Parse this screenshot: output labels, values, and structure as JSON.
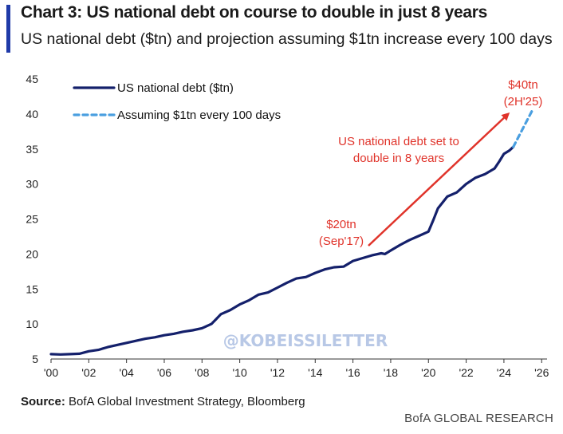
{
  "header": {
    "title": "Chart 3: US national debt on course to double in just 8 years",
    "subtitle": "US national debt ($tn) and projection assuming $1tn increase every 100 days"
  },
  "footer": {
    "source_label": "Source:",
    "source_text": " BofA Global Investment Strategy, Bloomberg",
    "brand": "BofA GLOBAL RESEARCH"
  },
  "watermark": "@KOBEISSILETTER",
  "colors": {
    "debt_line": "#14206b",
    "projection_line": "#4a9fe0",
    "annotation": "#e0332a",
    "watermark": "#b8c8e6"
  },
  "chart_data": {
    "type": "line",
    "title": "",
    "xlabel": "",
    "ylabel": "",
    "xlim": [
      2000,
      2027.3
    ],
    "ylim": [
      5,
      45
    ],
    "grid": false,
    "legend_position": "top-left",
    "x_ticks": [
      2000,
      2002,
      2004,
      2006,
      2008,
      2010,
      2012,
      2014,
      2016,
      2018,
      2020,
      2022,
      2024,
      2026
    ],
    "x_tick_labels": [
      "'00",
      "'02",
      "'04",
      "'06",
      "'08",
      "'10",
      "'12",
      "'14",
      "'16",
      "'18",
      "'20",
      "'22",
      "'24",
      "'26"
    ],
    "y_ticks": [
      5,
      10,
      15,
      20,
      25,
      30,
      35,
      40,
      45
    ],
    "y_tick_labels": [
      "5",
      "10",
      "15",
      "20",
      "25",
      "30",
      "35",
      "40",
      "45"
    ],
    "series": [
      {
        "name": "US national debt ($tn)",
        "style": "solid",
        "x": [
          2000.0,
          2000.5,
          2001.0,
          2001.5,
          2002.0,
          2002.5,
          2003.0,
          2003.5,
          2004.0,
          2004.5,
          2005.0,
          2005.5,
          2006.0,
          2006.5,
          2007.0,
          2007.5,
          2008.0,
          2008.5,
          2008.75,
          2009.0,
          2009.5,
          2010.0,
          2010.5,
          2011.0,
          2011.5,
          2012.0,
          2012.5,
          2013.0,
          2013.5,
          2014.0,
          2014.5,
          2015.0,
          2015.5,
          2016.0,
          2016.5,
          2017.0,
          2017.5,
          2017.7,
          2018.0,
          2018.5,
          2019.0,
          2019.5,
          2020.0,
          2020.25,
          2020.5,
          2021.0,
          2021.5,
          2022.0,
          2022.5,
          2023.0,
          2023.5,
          2023.75,
          2024.0,
          2024.3,
          2024.5
        ],
        "y": [
          5.7,
          5.65,
          5.7,
          5.75,
          6.1,
          6.3,
          6.7,
          7.0,
          7.3,
          7.6,
          7.9,
          8.1,
          8.4,
          8.6,
          8.9,
          9.1,
          9.4,
          10.0,
          10.7,
          11.4,
          12.0,
          12.8,
          13.4,
          14.2,
          14.5,
          15.2,
          15.9,
          16.5,
          16.7,
          17.3,
          17.8,
          18.1,
          18.2,
          19.0,
          19.4,
          19.8,
          20.1,
          20.0,
          20.5,
          21.3,
          22.0,
          22.6,
          23.2,
          24.8,
          26.5,
          28.2,
          28.8,
          30.0,
          30.9,
          31.4,
          32.2,
          33.2,
          34.3,
          34.8,
          35.3
        ]
      },
      {
        "name": "Assuming $1tn every 100 days",
        "style": "dashed",
        "x": [
          2024.5,
          2025.5
        ],
        "y": [
          35.3,
          40.5
        ]
      }
    ],
    "annotations": [
      {
        "text_lines": [
          "$40tn",
          "(2H'25)"
        ],
        "anchor": "top-right"
      },
      {
        "text_lines": [
          "US national debt set to",
          "double in 8 years"
        ],
        "anchor": "center"
      },
      {
        "text_lines": [
          "$20tn",
          "(Sep'17)"
        ],
        "anchor": "center-left"
      }
    ]
  }
}
